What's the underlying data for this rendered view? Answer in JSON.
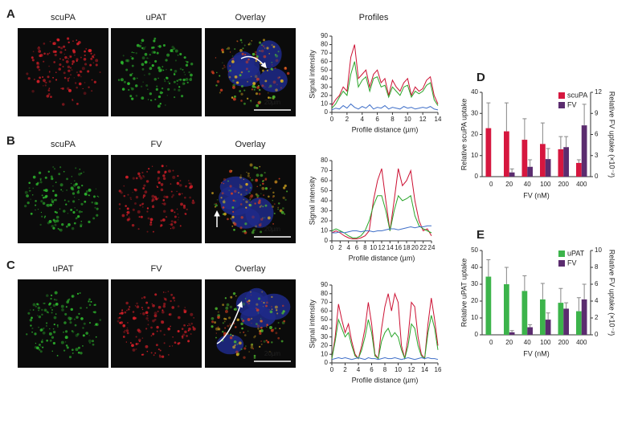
{
  "figure": {
    "panels": [
      {
        "letter": "A",
        "images": [
          "scuPA",
          "uPAT",
          "Overlay"
        ],
        "image_colors": [
          "#e0202a",
          "#2fbf2f",
          "#e0b020"
        ],
        "scale_bar": "20µm"
      },
      {
        "letter": "B",
        "images": [
          "scuPA",
          "FV",
          "Overlay"
        ],
        "image_colors": [
          "#2fbf2f",
          "#e0202a",
          "#e0b020"
        ],
        "scale_bar": "20µm"
      },
      {
        "letter": "C",
        "images": [
          "uPAT",
          "FV",
          "Overlay"
        ],
        "image_colors": [
          "#2fbf2f",
          "#e0202a",
          "#e0b020"
        ],
        "scale_bar": "20µm"
      }
    ],
    "profiles_title": "Profiles",
    "chart_letters": [
      "D",
      "E"
    ]
  },
  "chart_data": [
    {
      "type": "line",
      "xlabel": "Profile distance (µm)",
      "ylabel": "Signal intensity",
      "x": [
        0,
        0.5,
        1,
        1.5,
        2,
        2.5,
        3,
        3.5,
        4,
        4.5,
        5,
        5.5,
        6,
        6.5,
        7,
        7.5,
        8,
        8.5,
        9,
        9.5,
        10,
        10.5,
        11,
        11.5,
        12,
        12.5,
        13,
        13.5,
        14
      ],
      "xlim": [
        0,
        14
      ],
      "xticks": [
        0,
        2,
        4,
        6,
        8,
        10,
        12,
        14
      ],
      "ylim": [
        0,
        90
      ],
      "yticks": [
        0,
        10,
        20,
        30,
        40,
        50,
        60,
        70,
        80,
        90
      ],
      "series": [
        {
          "color": "#cc1133",
          "values": [
            8,
            15,
            20,
            30,
            25,
            65,
            80,
            40,
            45,
            50,
            30,
            45,
            50,
            35,
            40,
            20,
            38,
            30,
            25,
            35,
            40,
            20,
            30,
            25,
            28,
            38,
            42,
            20,
            10
          ]
        },
        {
          "color": "#2aa52a",
          "values": [
            5,
            10,
            18,
            25,
            20,
            45,
            60,
            30,
            38,
            42,
            25,
            40,
            42,
            30,
            32,
            18,
            30,
            25,
            20,
            30,
            32,
            18,
            25,
            22,
            25,
            32,
            35,
            15,
            8
          ]
        },
        {
          "color": "#3f6fc8",
          "values": [
            3,
            5,
            4,
            8,
            5,
            10,
            6,
            4,
            7,
            5,
            9,
            4,
            6,
            5,
            8,
            4,
            6,
            5,
            4,
            7,
            5,
            6,
            4,
            5,
            6,
            5,
            7,
            4,
            3
          ]
        }
      ]
    },
    {
      "type": "line",
      "xlabel": "Profile distance (µm)",
      "ylabel": "Signal intensity",
      "x": [
        0,
        1,
        2,
        3,
        4,
        5,
        6,
        7,
        8,
        9,
        10,
        11,
        12,
        13,
        14,
        15,
        16,
        17,
        18,
        19,
        20,
        21,
        22,
        23,
        24
      ],
      "xlim": [
        0,
        24
      ],
      "xticks": [
        0,
        2,
        4,
        6,
        8,
        10,
        12,
        14,
        16,
        18,
        20,
        22,
        24
      ],
      "ylim": [
        0,
        80
      ],
      "yticks": [
        0,
        10,
        20,
        30,
        40,
        50,
        60,
        70,
        80
      ],
      "series": [
        {
          "color": "#cc1133",
          "values": [
            8,
            10,
            8,
            5,
            3,
            2,
            2,
            3,
            5,
            10,
            40,
            60,
            72,
            40,
            10,
            40,
            72,
            55,
            60,
            70,
            40,
            20,
            10,
            12,
            5
          ]
        },
        {
          "color": "#2aa52a",
          "values": [
            10,
            12,
            10,
            8,
            5,
            3,
            3,
            5,
            10,
            20,
            35,
            45,
            45,
            30,
            10,
            30,
            45,
            40,
            42,
            45,
            25,
            15,
            12,
            10,
            8
          ]
        },
        {
          "color": "#3f6fc8",
          "values": [
            8,
            8,
            9,
            8,
            9,
            10,
            10,
            9,
            10,
            10,
            9,
            10,
            10,
            11,
            12,
            12,
            11,
            12,
            13,
            14,
            13,
            14,
            14,
            15,
            15
          ]
        }
      ]
    },
    {
      "type": "line",
      "xlabel": "Profile distance (µm)",
      "ylabel": "Signal intensity",
      "x": [
        0,
        0.5,
        1,
        1.5,
        2,
        2.5,
        3,
        3.5,
        4,
        4.5,
        5,
        5.5,
        6,
        6.5,
        7,
        7.5,
        8,
        8.5,
        9,
        9.5,
        10,
        10.5,
        11,
        11.5,
        12,
        12.5,
        13,
        13.5,
        14,
        14.5,
        15,
        15.5,
        16
      ],
      "xlim": [
        0,
        16
      ],
      "xticks": [
        0,
        2,
        4,
        6,
        8,
        10,
        12,
        14,
        16
      ],
      "ylim": [
        0,
        90
      ],
      "yticks": [
        0,
        10,
        20,
        30,
        40,
        50,
        60,
        70,
        80,
        90
      ],
      "series": [
        {
          "color": "#cc1133",
          "values": [
            5,
            30,
            68,
            50,
            35,
            45,
            25,
            10,
            5,
            20,
            40,
            70,
            45,
            10,
            5,
            40,
            65,
            80,
            60,
            80,
            70,
            20,
            5,
            30,
            70,
            65,
            30,
            10,
            5,
            45,
            75,
            50,
            20
          ]
        },
        {
          "color": "#2aa52a",
          "values": [
            5,
            25,
            50,
            40,
            30,
            35,
            20,
            8,
            5,
            15,
            30,
            50,
            35,
            8,
            5,
            25,
            35,
            40,
            30,
            35,
            30,
            15,
            5,
            20,
            45,
            40,
            20,
            8,
            5,
            35,
            55,
            40,
            15
          ]
        },
        {
          "color": "#3f6fc8",
          "values": [
            4,
            5,
            6,
            5,
            6,
            5,
            4,
            5,
            6,
            5,
            4,
            6,
            5,
            5,
            4,
            5,
            6,
            5,
            5,
            6,
            5,
            4,
            5,
            6,
            5,
            4,
            5,
            6,
            5,
            6,
            5,
            5,
            4
          ]
        }
      ]
    },
    {
      "type": "bar",
      "xlabel": "FV (nM)",
      "ylabel": "Relative scuPA uptake",
      "y2label": "Relative FV uptake (×10⁻²)",
      "categories": [
        "0",
        "20",
        "40",
        "100",
        "200",
        "400"
      ],
      "ylim": [
        0,
        40
      ],
      "yticks": [
        0,
        10,
        20,
        30,
        40
      ],
      "y2lim": [
        0,
        12
      ],
      "y2ticks": [
        0,
        3,
        6,
        9,
        12
      ],
      "legend": "upper right",
      "series": [
        {
          "name": "scuPA",
          "color": "#d6173f",
          "values": [
            23,
            21.5,
            17.5,
            15.5,
            13,
            6.5
          ],
          "errors": [
            12,
            13.5,
            10,
            10,
            6,
            1.5
          ]
        },
        {
          "name": "FV",
          "color": "#5b2c6f",
          "axis": "y2",
          "values": [
            null,
            0.6,
            1.4,
            2.5,
            4.2,
            7.3
          ],
          "errors": [
            null,
            0.5,
            1,
            1.5,
            1.5,
            3
          ]
        }
      ]
    },
    {
      "type": "bar",
      "xlabel": "FV (nM)",
      "ylabel": "Relative uPAT uptake",
      "y2label": "Relative FV uptake (×10⁻²)",
      "categories": [
        "0",
        "20",
        "40",
        "100",
        "200",
        "400"
      ],
      "ylim": [
        0,
        50
      ],
      "yticks": [
        0,
        10,
        20,
        30,
        40,
        50
      ],
      "y2lim": [
        0,
        10
      ],
      "y2ticks": [
        0,
        2,
        4,
        6,
        8,
        10
      ],
      "legend": "upper right",
      "series": [
        {
          "name": "uPAT",
          "color": "#3cb44b",
          "values": [
            34.5,
            30,
            26,
            21,
            19,
            14
          ],
          "errors": [
            10,
            10,
            9,
            9.5,
            8.5,
            8
          ]
        },
        {
          "name": "FV",
          "color": "#5b2c6f",
          "axis": "y2",
          "values": [
            null,
            0.3,
            0.9,
            1.8,
            3.1,
            4.2
          ],
          "errors": [
            null,
            0.2,
            0.3,
            0.8,
            0.7,
            1.8
          ]
        }
      ]
    }
  ]
}
